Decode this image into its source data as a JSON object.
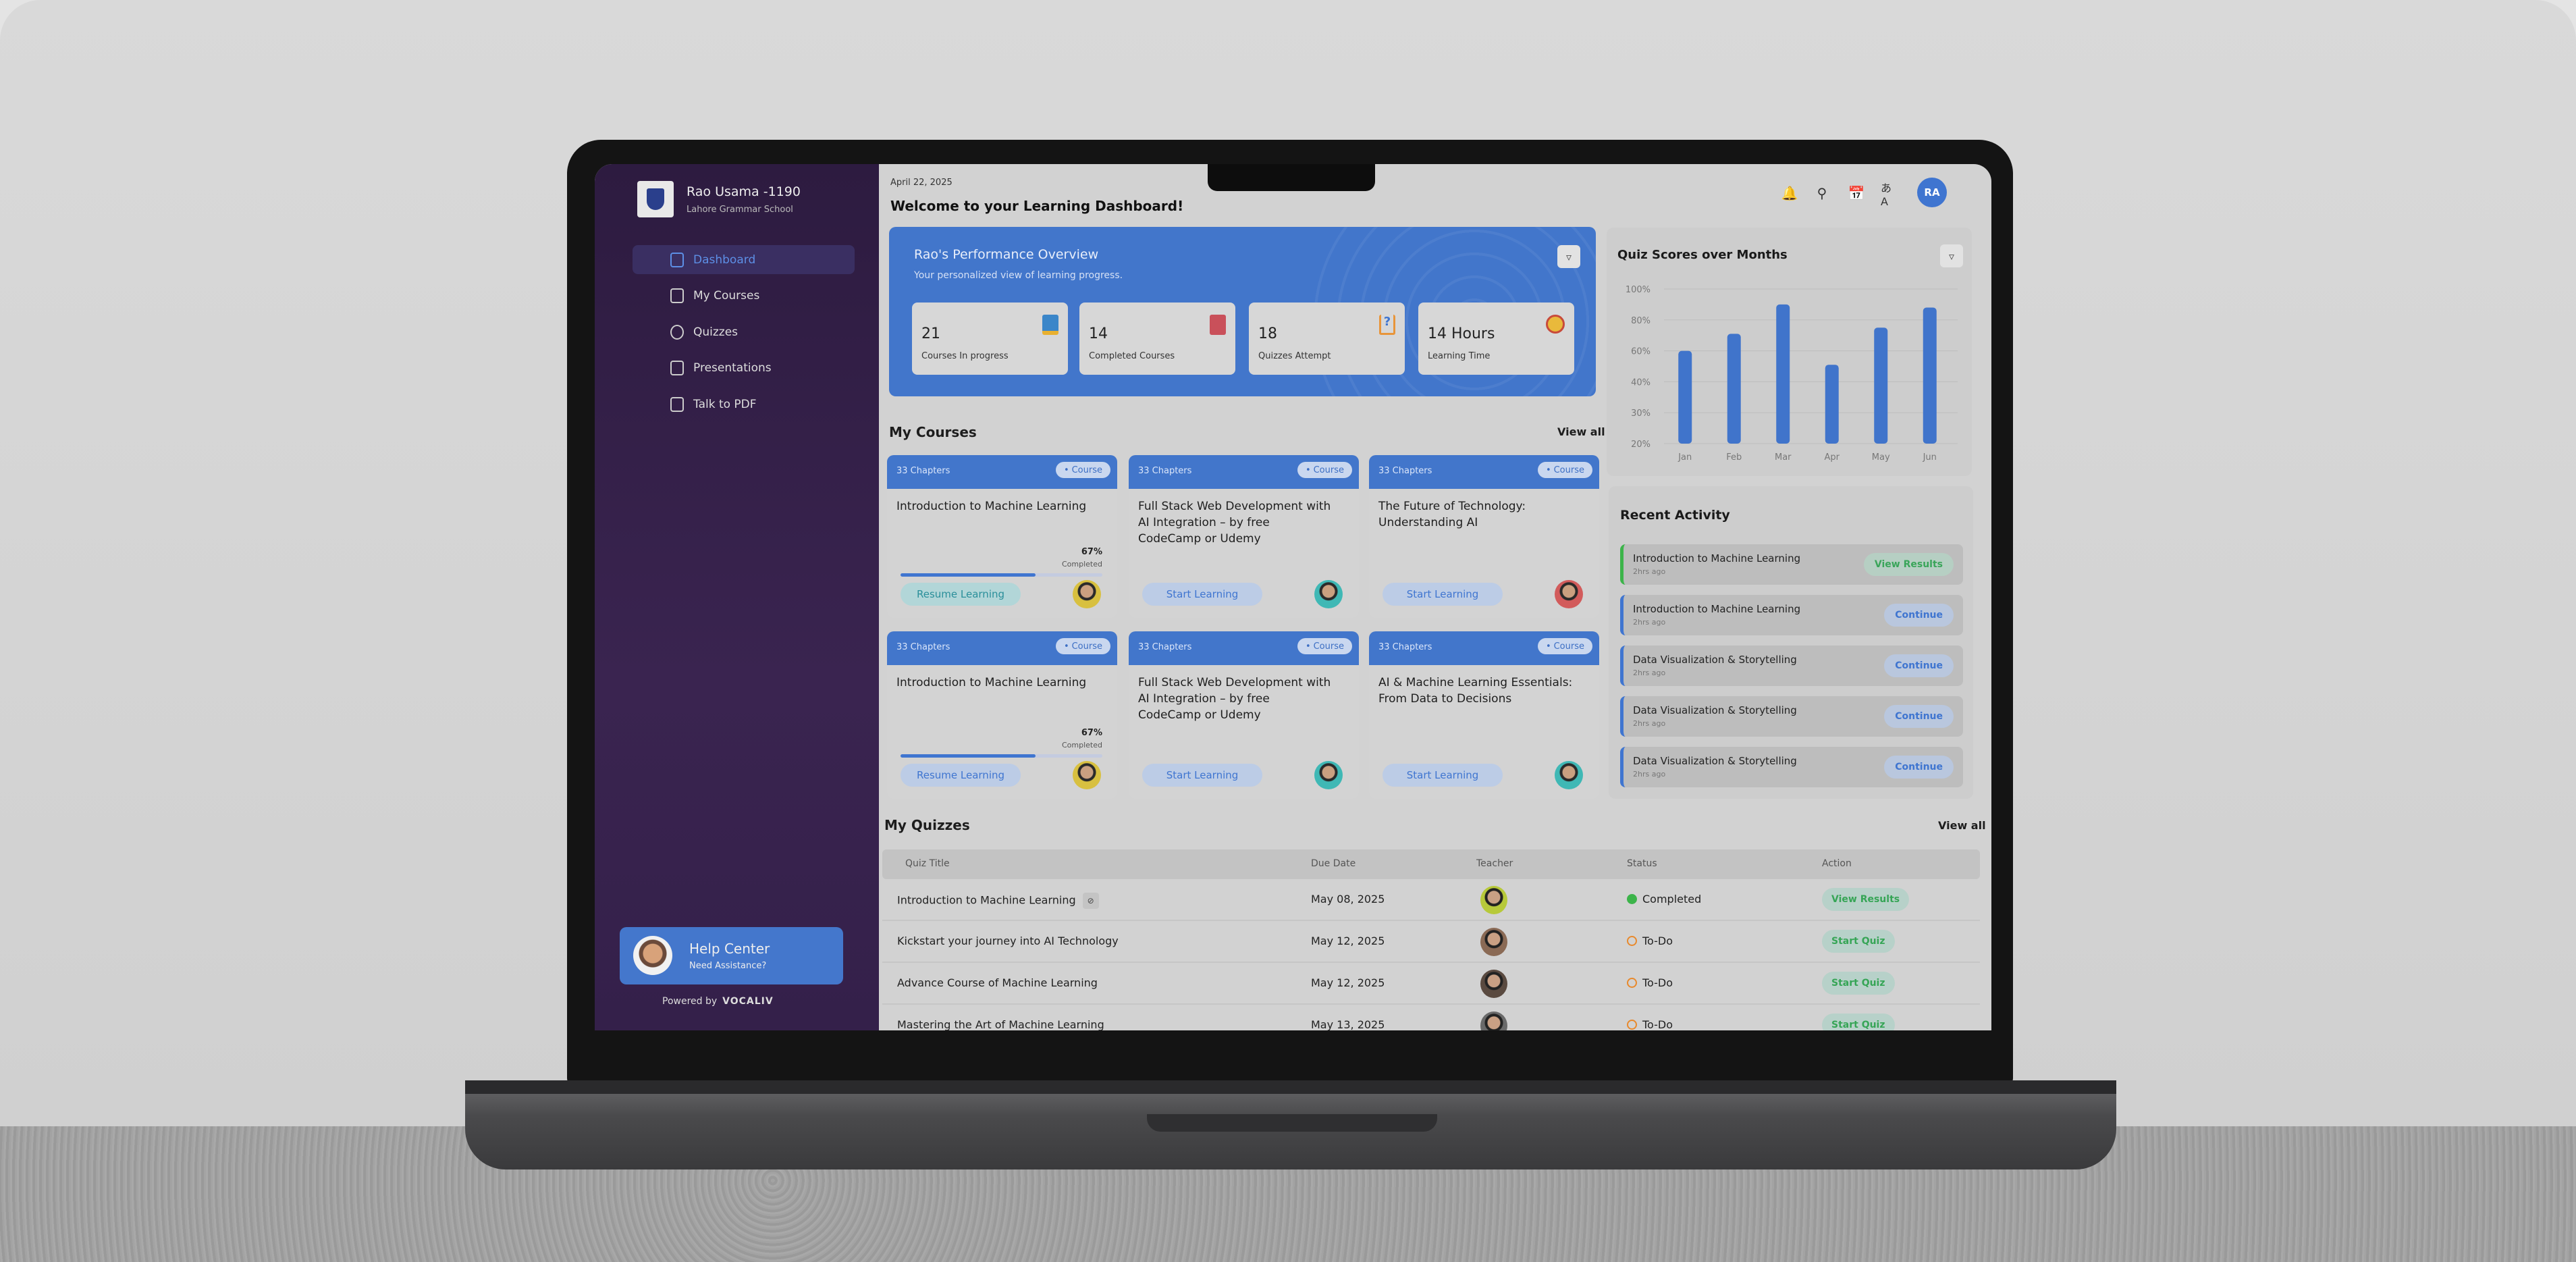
{
  "sidebar": {
    "user_name": "Rao Usama -1190",
    "school": "Lahore Grammar School",
    "items": [
      {
        "label": "Dashboard",
        "icon": "dashboard-icon",
        "active": true
      },
      {
        "label": "My Courses",
        "icon": "books-icon"
      },
      {
        "label": "Quizzes",
        "icon": "quiz-icon"
      },
      {
        "label": "Presentations",
        "icon": "presentation-icon"
      },
      {
        "label": "Talk to PDF",
        "icon": "pdf-icon"
      }
    ],
    "help_title": "Help Center",
    "help_subtitle": "Need Assistance?",
    "powered_by": "Powered by",
    "brand": "VOCALIV"
  },
  "header": {
    "date": "April 22, 2025",
    "welcome": "Welcome to your Learning Dashboard!",
    "avatar_initials": "RA",
    "icons": [
      "bell-icon",
      "search-icon",
      "calendar-icon",
      "translate-icon"
    ]
  },
  "performance": {
    "title": "Rao's Performance Overview",
    "subtitle": "Your personalized view of learning progress.",
    "stats": [
      {
        "value": "21",
        "label": "Courses In progress",
        "icon": "notebook-icon"
      },
      {
        "value": "14",
        "label": "Completed Courses",
        "icon": "book-check-icon"
      },
      {
        "value": "18",
        "label": "Quizzes Attempt",
        "icon": "question-book-icon"
      },
      {
        "value": "14 Hours",
        "label": "Learning Time",
        "icon": "clock-icon"
      }
    ]
  },
  "chart_data": {
    "type": "bar",
    "title": "Quiz Scores over Months",
    "categories": [
      "Jan",
      "Feb",
      "Mar",
      "Apr",
      "May",
      "Jun"
    ],
    "values": [
      60,
      71,
      90,
      51,
      75,
      88
    ],
    "yticks": [
      "100%",
      "80%",
      "60%",
      "40%",
      "30%",
      "20%"
    ],
    "ytick_values": [
      100,
      80,
      60,
      40,
      30,
      20
    ],
    "ylim": [
      20,
      100
    ],
    "grid": true,
    "color": "#4074cb"
  },
  "courses": {
    "title": "My Courses",
    "view_all": "View all",
    "items": [
      {
        "chapters": "33 Chapters",
        "tag": "Course",
        "title": "Introduction to Machine Learning",
        "progress": 67,
        "pct": "67%",
        "completed": "Completed",
        "button": "Resume Learning",
        "style": "teal"
      },
      {
        "chapters": "33 Chapters",
        "tag": "Course",
        "title": "Full Stack Web Development with AI Integration – by free CodeCamp or Udemy",
        "button": "Start Learning"
      },
      {
        "chapters": "33 Chapters",
        "tag": "Course",
        "title": "The Future of Technology: Understanding AI",
        "button": "Start Learning"
      },
      {
        "chapters": "33 Chapters",
        "tag": "Course",
        "title": "Introduction to Machine Learning",
        "progress": 67,
        "pct": "67%",
        "completed": "Completed",
        "button": "Resume Learning"
      },
      {
        "chapters": "33 Chapters",
        "tag": "Course",
        "title": "Full Stack Web Development with AI Integration – by free CodeCamp or Udemy",
        "button": "Start Learning"
      },
      {
        "chapters": "33 Chapters",
        "tag": "Course",
        "title": "AI & Machine Learning Essentials: From Data to Decisions",
        "button": "Start Learning"
      }
    ]
  },
  "activity": {
    "title": "Recent Activity",
    "items": [
      {
        "title": "Introduction to Machine Learning",
        "time": "2hrs ago",
        "action": "View Results"
      },
      {
        "title": "Introduction to Machine Learning",
        "time": "2hrs ago",
        "action": "Continue"
      },
      {
        "title": "Data Visualization & Storytelling",
        "time": "2hrs ago",
        "action": "Continue"
      },
      {
        "title": "Data Visualization & Storytelling",
        "time": "2hrs ago",
        "action": "Continue"
      },
      {
        "title": "Data Visualization & Storytelling",
        "time": "2hrs ago",
        "action": "Continue"
      }
    ]
  },
  "quizzes": {
    "title": "My Quizzes",
    "view_all": "View all",
    "columns": [
      "Quiz Title",
      "Due Date",
      "Teacher",
      "Status",
      "Action"
    ],
    "rows": [
      {
        "title": "Introduction to Machine Learning",
        "due": "May 08, 2025",
        "status": "Completed",
        "action": "View Results"
      },
      {
        "title": "Kickstart your journey into AI Technology",
        "due": "May 12, 2025",
        "status": "To-Do",
        "action": "Start Quiz"
      },
      {
        "title": "Advance Course of Machine Learning",
        "due": "May 12, 2025",
        "status": "To-Do",
        "action": "Start Quiz"
      },
      {
        "title": "Mastering the Art of Machine Learning",
        "due": "May 13, 2025",
        "status": "To-Do",
        "action": "Start Quiz"
      }
    ]
  },
  "colors": {
    "accent": "#4276cb",
    "sidebar": "#2d1b40",
    "success": "#3cb44a",
    "todo": "#e8892c"
  }
}
